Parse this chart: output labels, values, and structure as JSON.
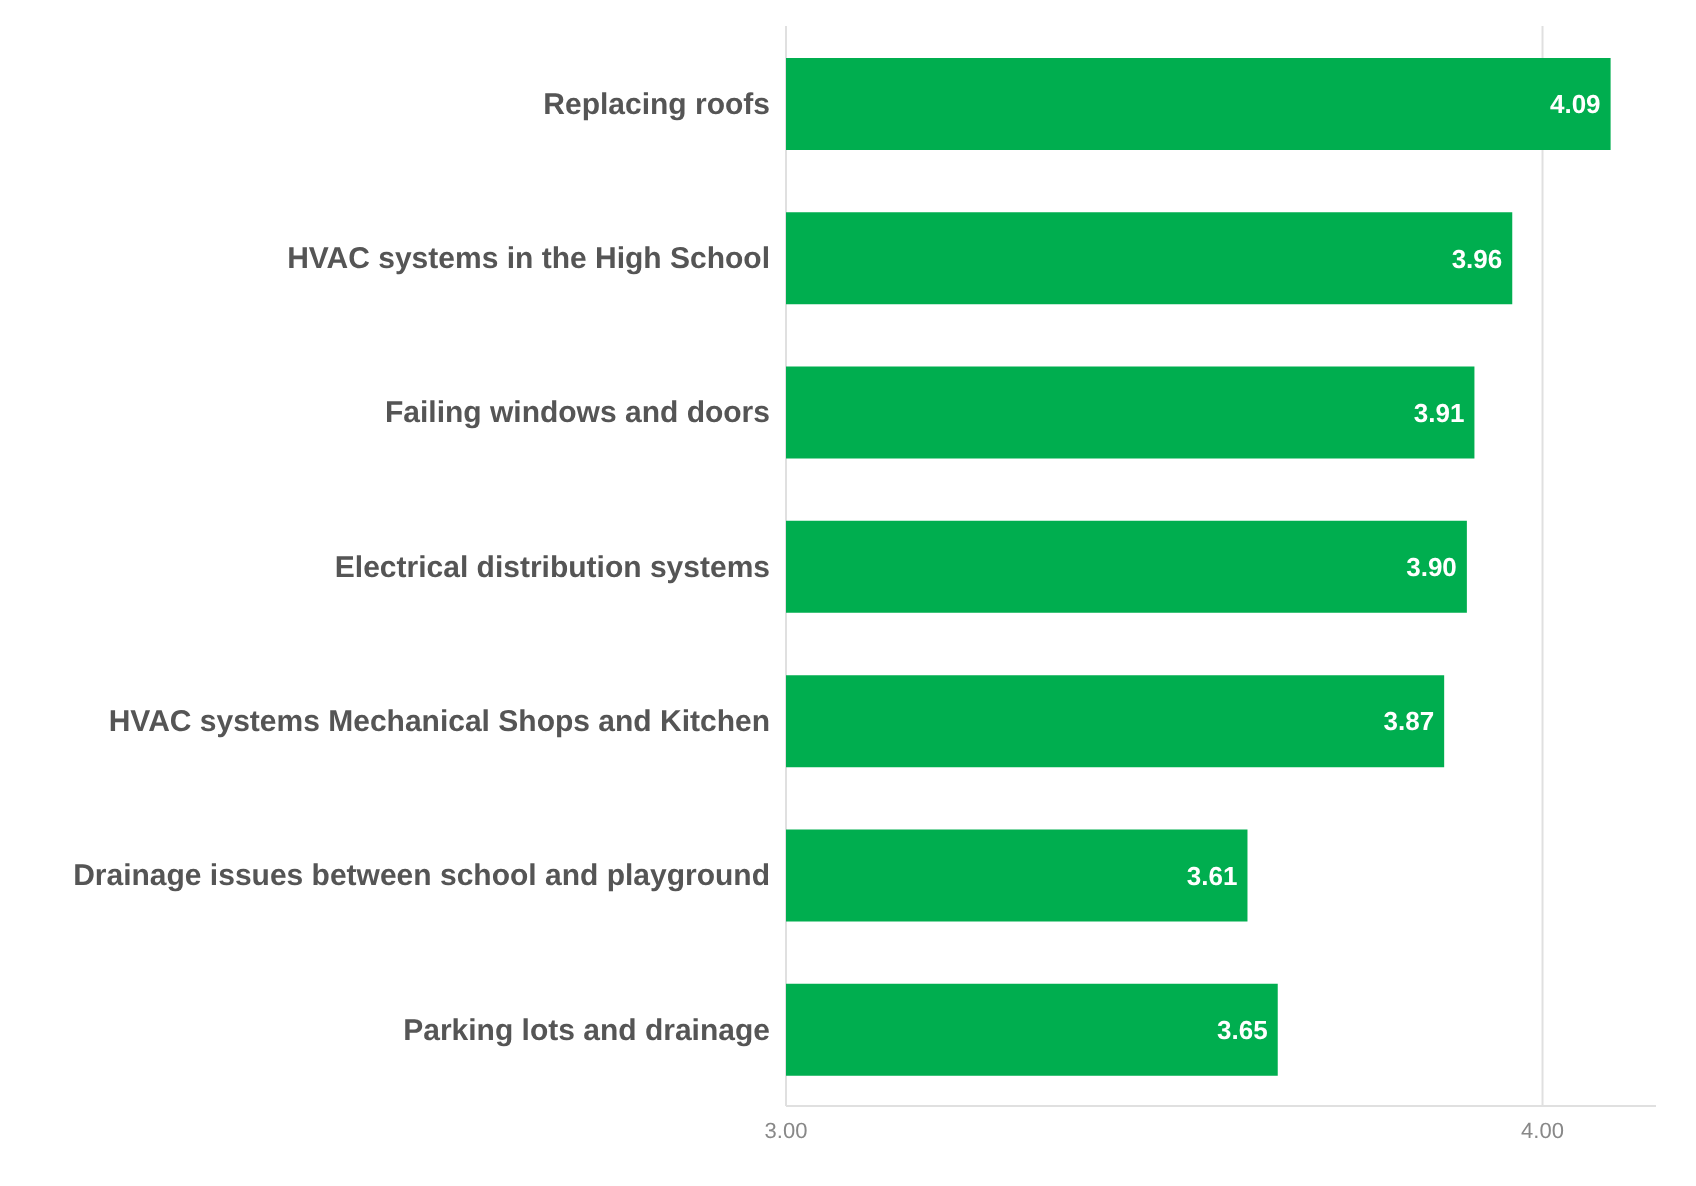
{
  "chart_data": {
    "type": "bar",
    "orientation": "horizontal",
    "categories": [
      "Replacing roofs",
      "HVAC systems in the High School",
      "Failing windows and doors",
      "Electrical distribution systems",
      "HVAC systems Mechanical Shops and Kitchen",
      "Drainage issues between school and playground",
      "Parking lots and drainage"
    ],
    "values": [
      4.09,
      3.96,
      3.91,
      3.9,
      3.87,
      3.61,
      3.65
    ],
    "color": "#00ae4f",
    "xlim": [
      3,
      4.15
    ],
    "xticks": [
      {
        "value": 3,
        "label": "3.00"
      },
      {
        "value": 4,
        "label": "4.00"
      }
    ],
    "value_labels": [
      "4.09",
      "3.96",
      "3.91",
      "3.90",
      "3.87",
      "3.61",
      "3.65"
    ],
    "grid": "x"
  }
}
